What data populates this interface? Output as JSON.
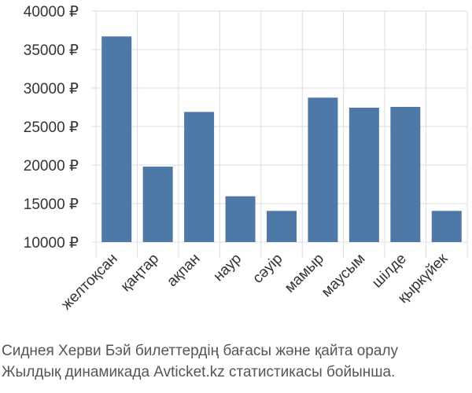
{
  "chart_data": {
    "type": "bar",
    "categories": [
      "желтоқсан",
      "қаңтар",
      "ақпан",
      "наур",
      "сәуір",
      "мамыр",
      "маусым",
      "шілде",
      "қыркүйек"
    ],
    "values": [
      36700,
      19800,
      26900,
      15950,
      14050,
      28750,
      27450,
      27550,
      14050
    ],
    "ylim": [
      10000,
      40000
    ],
    "yticks": [
      10000,
      15000,
      20000,
      25000,
      30000,
      35000,
      40000
    ],
    "ytick_labels": [
      "10000 ₽",
      "15000 ₽",
      "20000 ₽",
      "25000 ₽",
      "30000 ₽",
      "35000 ₽",
      "40000 ₽"
    ],
    "grid": true,
    "legend": "none",
    "bar_color": "#4e79a7",
    "grid_color": "#dddddd"
  },
  "caption": {
    "line1": "Сиднея Херви Бэй билеттердің бағасы және қайта оралу",
    "line2": "Жылдық динамикада Avticket.kz статистикасы бойынша."
  }
}
